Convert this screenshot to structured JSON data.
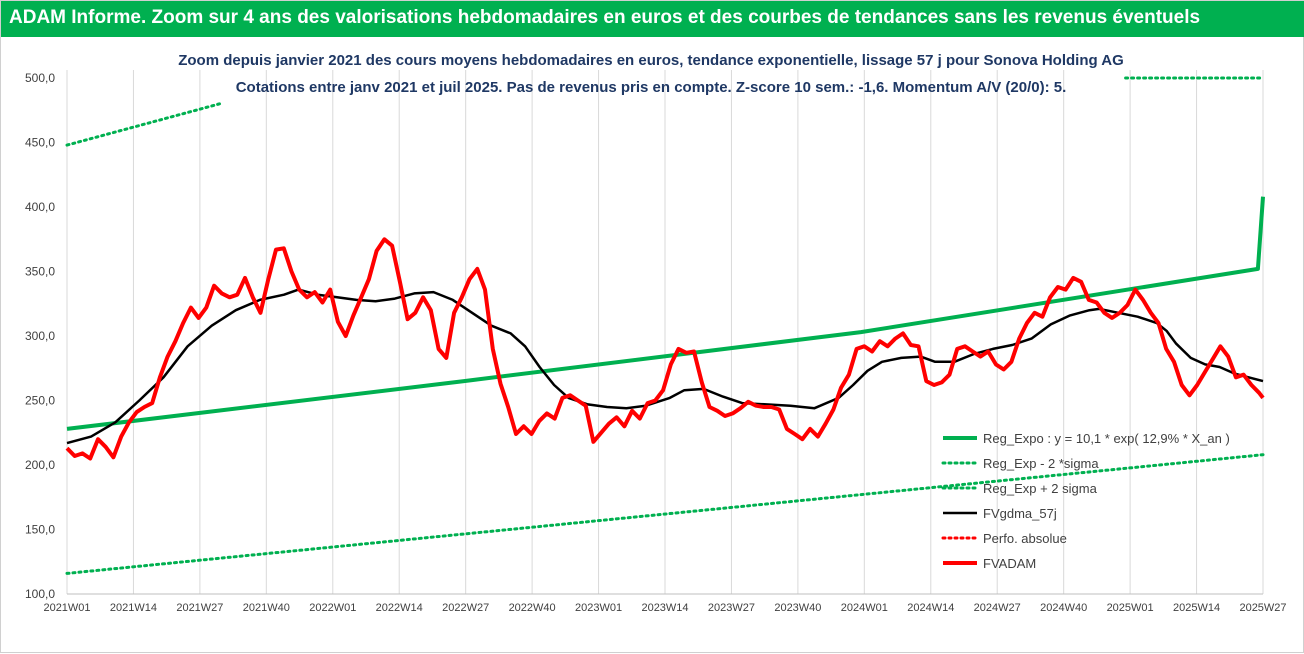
{
  "banner": {
    "title": "ADAM Informe. Zoom sur 4 ans des valorisations hebdomadaires en euros et des courbes de tendances sans les revenus éventuels"
  },
  "colors": {
    "banner": "#00b050",
    "reg_expo": "#00b050",
    "bands": "#00b050",
    "fvgdma": "#000000",
    "perfo": "#ff0000",
    "fvadam": "#ff0000",
    "title_text": "#1f3864"
  },
  "chart_data": {
    "type": "line",
    "title": "Zoom depuis janvier 2021 des cours moyens hebdomadaires en euros, tendance exponentielle, lissage 57 j pour Sonova Holding AG",
    "subtitle": "Cotations entre janv 2021 et juil 2025. Pas de revenus pris en compte. Z-score 10 sem.: -1,6. Momentum A/V (20/0): 5.",
    "ylim": [
      100,
      500
    ],
    "yticks": [
      "100,0",
      "150,0",
      "200,0",
      "250,0",
      "300,0",
      "350,0",
      "400,0",
      "450,0",
      "500,0"
    ],
    "xticks": [
      "2021W01",
      "2021W14",
      "2021W27",
      "2021W40",
      "2022W01",
      "2022W14",
      "2022W27",
      "2022W40",
      "2023W01",
      "2023W14",
      "2023W27",
      "2023W40",
      "2024W01",
      "2024W14",
      "2024W27",
      "2024W40",
      "2025W01",
      "2025W14",
      "2025W27"
    ],
    "grid": "vertical",
    "legend_position": "right",
    "series": [
      {
        "name": "Reg_Expo : y = 10,1 * exp( 12,9% * X_an )",
        "style": "solid-thick",
        "color": "#00b050",
        "points": [
          [
            0,
            228
          ],
          [
            78,
            265
          ],
          [
            156,
            303
          ],
          [
            234,
            352
          ],
          [
            235,
            408
          ]
        ]
      },
      {
        "name": "Reg_Exp - 2 *sigma",
        "style": "dotted",
        "color": "#00b050",
        "points": [
          [
            0,
            116
          ],
          [
            235,
            208
          ]
        ]
      },
      {
        "name": "Reg_Exp + 2 sigma",
        "style": "dotted",
        "color": "#00b050",
        "points": [
          [
            0,
            448
          ],
          [
            30,
            480
          ]
        ],
        "points_b": [
          [
            208,
            500
          ],
          [
            235,
            500
          ]
        ]
      },
      {
        "name": "FVgdma_57j",
        "style": "solid",
        "color": "#000000",
        "points": [
          [
            0,
            217
          ],
          [
            5,
            222
          ],
          [
            10,
            233
          ],
          [
            15,
            250
          ],
          [
            20,
            268
          ],
          [
            25,
            292
          ],
          [
            30,
            308
          ],
          [
            35,
            320
          ],
          [
            40,
            328
          ],
          [
            45,
            332
          ],
          [
            48,
            336
          ],
          [
            52,
            332
          ],
          [
            56,
            330
          ],
          [
            60,
            328
          ],
          [
            64,
            327
          ],
          [
            68,
            329
          ],
          [
            72,
            333
          ],
          [
            76,
            334
          ],
          [
            80,
            328
          ],
          [
            84,
            318
          ],
          [
            88,
            308
          ],
          [
            92,
            302
          ],
          [
            95,
            292
          ],
          [
            98,
            276
          ],
          [
            101,
            262
          ],
          [
            104,
            252
          ],
          [
            108,
            247
          ],
          [
            112,
            245
          ],
          [
            116,
            244
          ],
          [
            120,
            246
          ],
          [
            125,
            252
          ],
          [
            128,
            258
          ],
          [
            132,
            259
          ],
          [
            136,
            253
          ],
          [
            140,
            248
          ],
          [
            145,
            247
          ],
          [
            150,
            246
          ],
          [
            155,
            244
          ],
          [
            160,
            252
          ],
          [
            163,
            262
          ],
          [
            166,
            273
          ],
          [
            169,
            280
          ],
          [
            173,
            283
          ],
          [
            177,
            284
          ],
          [
            180,
            280
          ],
          [
            184,
            280
          ],
          [
            188,
            286
          ],
          [
            192,
            290
          ],
          [
            196,
            293
          ],
          [
            200,
            298
          ],
          [
            204,
            309
          ],
          [
            208,
            316
          ],
          [
            212,
            320
          ],
          [
            214,
            321
          ],
          [
            218,
            318
          ],
          [
            222,
            315
          ],
          [
            226,
            310
          ],
          [
            228,
            304
          ],
          [
            230,
            294
          ],
          [
            233,
            283
          ],
          [
            236,
            278
          ],
          [
            239,
            276
          ],
          [
            242,
            271
          ],
          [
            245,
            268
          ],
          [
            248,
            265
          ]
        ]
      },
      {
        "name": "Perfo. absolue",
        "style": "dotted",
        "color": "#ff0000",
        "points": []
      },
      {
        "name": "FVADAM",
        "style": "solid-thick",
        "color": "#ff0000",
        "points": [
          [
            0,
            213
          ],
          [
            2,
            207
          ],
          [
            4,
            209
          ],
          [
            6,
            205
          ],
          [
            8,
            220
          ],
          [
            10,
            214
          ],
          [
            12,
            206
          ],
          [
            14,
            222
          ],
          [
            16,
            233
          ],
          [
            18,
            241
          ],
          [
            20,
            245
          ],
          [
            22,
            248
          ],
          [
            24,
            268
          ],
          [
            26,
            284
          ],
          [
            28,
            296
          ],
          [
            30,
            310
          ],
          [
            32,
            322
          ],
          [
            34,
            314
          ],
          [
            36,
            322
          ],
          [
            38,
            339
          ],
          [
            40,
            333
          ],
          [
            42,
            330
          ],
          [
            44,
            332
          ],
          [
            46,
            345
          ],
          [
            48,
            330
          ],
          [
            50,
            318
          ],
          [
            52,
            344
          ],
          [
            54,
            367
          ],
          [
            56,
            368
          ],
          [
            58,
            350
          ],
          [
            60,
            336
          ],
          [
            62,
            330
          ],
          [
            64,
            334
          ],
          [
            66,
            326
          ],
          [
            68,
            336
          ],
          [
            70,
            311
          ],
          [
            72,
            300
          ],
          [
            74,
            316
          ],
          [
            76,
            330
          ],
          [
            78,
            344
          ],
          [
            80,
            366
          ],
          [
            82,
            375
          ],
          [
            84,
            370
          ],
          [
            86,
            342
          ],
          [
            88,
            313
          ],
          [
            90,
            318
          ],
          [
            92,
            330
          ],
          [
            94,
            320
          ],
          [
            96,
            290
          ],
          [
            98,
            283
          ],
          [
            100,
            318
          ],
          [
            102,
            330
          ],
          [
            104,
            344
          ],
          [
            106,
            352
          ],
          [
            108,
            336
          ],
          [
            110,
            290
          ],
          [
            112,
            263
          ],
          [
            114,
            245
          ],
          [
            116,
            224
          ],
          [
            118,
            230
          ],
          [
            120,
            224
          ],
          [
            122,
            234
          ],
          [
            124,
            240
          ],
          [
            126,
            236
          ],
          [
            128,
            252
          ],
          [
            130,
            254
          ],
          [
            132,
            250
          ],
          [
            134,
            246
          ],
          [
            136,
            218
          ],
          [
            138,
            225
          ],
          [
            140,
            232
          ],
          [
            142,
            237
          ],
          [
            144,
            230
          ],
          [
            146,
            242
          ],
          [
            148,
            236
          ],
          [
            150,
            248
          ],
          [
            152,
            250
          ],
          [
            154,
            258
          ],
          [
            156,
            278
          ],
          [
            158,
            290
          ],
          [
            160,
            287
          ],
          [
            162,
            288
          ],
          [
            164,
            264
          ],
          [
            166,
            245
          ],
          [
            168,
            242
          ],
          [
            170,
            238
          ],
          [
            172,
            240
          ],
          [
            174,
            244
          ],
          [
            176,
            249
          ],
          [
            178,
            246
          ],
          [
            180,
            245
          ],
          [
            182,
            245
          ],
          [
            184,
            243
          ],
          [
            186,
            228
          ],
          [
            188,
            224
          ],
          [
            190,
            220
          ],
          [
            192,
            228
          ],
          [
            194,
            222
          ],
          [
            196,
            232
          ],
          [
            198,
            243
          ],
          [
            200,
            260
          ],
          [
            202,
            270
          ],
          [
            204,
            290
          ],
          [
            206,
            292
          ],
          [
            208,
            288
          ],
          [
            210,
            296
          ],
          [
            212,
            292
          ],
          [
            214,
            298
          ],
          [
            216,
            302
          ],
          [
            218,
            293
          ],
          [
            220,
            292
          ],
          [
            222,
            265
          ],
          [
            224,
            262
          ],
          [
            226,
            264
          ],
          [
            228,
            270
          ],
          [
            230,
            290
          ],
          [
            232,
            292
          ],
          [
            234,
            288
          ],
          [
            236,
            284
          ],
          [
            238,
            288
          ],
          [
            240,
            278
          ],
          [
            242,
            274
          ],
          [
            244,
            280
          ],
          [
            246,
            298
          ],
          [
            248,
            310
          ],
          [
            250,
            318
          ],
          [
            252,
            315
          ],
          [
            254,
            330
          ],
          [
            256,
            338
          ],
          [
            258,
            336
          ],
          [
            260,
            345
          ],
          [
            262,
            342
          ],
          [
            264,
            328
          ],
          [
            266,
            326
          ],
          [
            268,
            318
          ],
          [
            270,
            314
          ],
          [
            272,
            318
          ],
          [
            274,
            324
          ],
          [
            276,
            336
          ],
          [
            278,
            328
          ],
          [
            280,
            318
          ],
          [
            282,
            310
          ],
          [
            284,
            290
          ],
          [
            286,
            280
          ],
          [
            288,
            262
          ],
          [
            290,
            254
          ],
          [
            292,
            262
          ],
          [
            294,
            272
          ],
          [
            296,
            282
          ],
          [
            298,
            292
          ],
          [
            300,
            284
          ],
          [
            302,
            268
          ],
          [
            304,
            270
          ],
          [
            306,
            262
          ],
          [
            308,
            256
          ],
          [
            309,
            252
          ]
        ]
      }
    ]
  }
}
